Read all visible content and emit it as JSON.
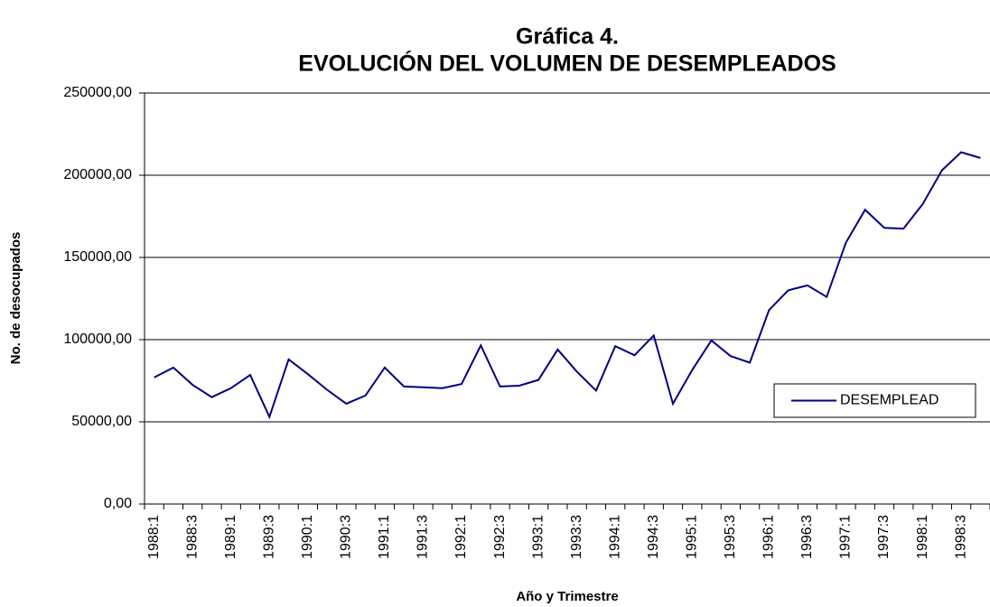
{
  "chart_data": {
    "type": "line",
    "title": "Gráfica 4.",
    "subtitle": "EVOLUCIÓN DEL VOLUMEN DE DESEMPLEADOS",
    "x_label": "Año y Trimestre",
    "y_label": "No. de desocupados",
    "categories": [
      "1988:1",
      null,
      "1988:3",
      null,
      "1989:1",
      null,
      "1989:3",
      null,
      "1990:1",
      null,
      "1990:3",
      null,
      "1991:1",
      null,
      "1991:3",
      null,
      "1992:1",
      null,
      "1992:3",
      null,
      "1993:1",
      null,
      "1993:3",
      null,
      "1994:1",
      null,
      "1994:3",
      null,
      "1995:1",
      null,
      "1995:3",
      null,
      "1996:1",
      null,
      "1996:3",
      null,
      "1997:1",
      null,
      "1997:3",
      null,
      "1998:1",
      null,
      "1998:3",
      null
    ],
    "series": [
      {
        "name": "DESEMPLEAD",
        "color": "#000080",
        "values": [
          77000,
          83000,
          72500,
          65000,
          70500,
          78500,
          53000,
          88000,
          79000,
          69500,
          61000,
          66000,
          83000,
          71500,
          71000,
          70500,
          73000,
          96500,
          71500,
          72000,
          75500,
          94000,
          80500,
          69000,
          96000,
          90500,
          102500,
          61000,
          81500,
          99500,
          90000,
          86000,
          118000,
          130000,
          133000,
          126000,
          159000,
          179000,
          168000,
          167500,
          182500,
          203000,
          214000,
          210500
        ]
      }
    ],
    "ylim": [
      0,
      250000
    ],
    "yticks": [
      {
        "value": 0,
        "label": "0,00"
      },
      {
        "value": 50000,
        "label": "50000,00"
      },
      {
        "value": 100000,
        "label": "100000,00"
      },
      {
        "value": 150000,
        "label": "150000,00"
      },
      {
        "value": 200000,
        "label": "200000,00"
      },
      {
        "value": 250000,
        "label": "250000,00"
      }
    ],
    "grid": true,
    "legend": "right"
  }
}
